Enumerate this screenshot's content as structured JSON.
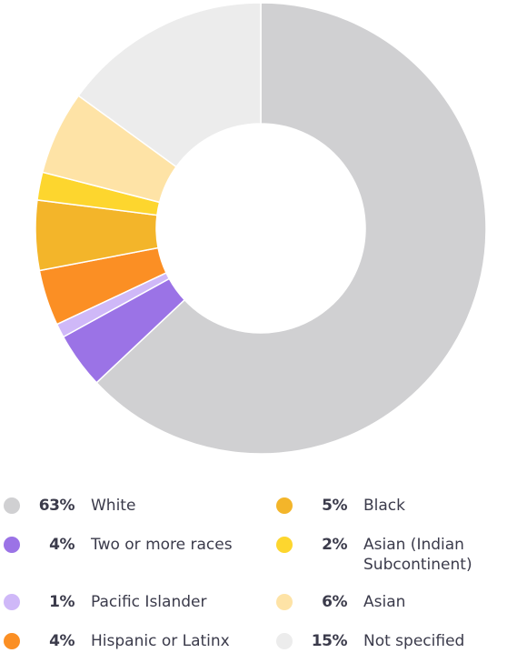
{
  "chart_data": {
    "type": "donut",
    "categories": [
      "White",
      "Two or more races",
      "Pacific Islander",
      "Hispanic or Latinx",
      "Black",
      "Asian (Indian Subcontinent)",
      "Asian",
      "Not specified"
    ],
    "values": [
      63,
      4,
      1,
      4,
      5,
      2,
      6,
      15
    ],
    "value_labels": [
      "63%",
      "4%",
      "1%",
      "4%",
      "5%",
      "2%",
      "6%",
      "15%"
    ],
    "colors": [
      "#d0d0d2",
      "#9b73e6",
      "#cfb8f8",
      "#fb8f24",
      "#f3b52a",
      "#fdd62e",
      "#fee3a6",
      "#ececec"
    ]
  }
}
